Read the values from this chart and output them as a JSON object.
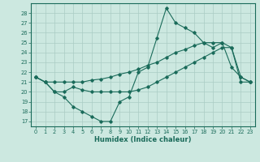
{
  "xlabel": "Humidex (Indice chaleur)",
  "bg_color": "#cce8e0",
  "grid_color": "#aaccC4",
  "line_color": "#1a6b5a",
  "xlim": [
    -0.5,
    23.5
  ],
  "ylim": [
    16.5,
    29.0
  ],
  "yticks": [
    17,
    18,
    19,
    20,
    21,
    22,
    23,
    24,
    25,
    26,
    27,
    28
  ],
  "xticks": [
    0,
    1,
    2,
    3,
    4,
    5,
    6,
    7,
    8,
    9,
    10,
    11,
    12,
    13,
    14,
    15,
    16,
    17,
    18,
    19,
    20,
    21,
    22,
    23
  ],
  "line1_x": [
    0,
    1,
    2,
    3,
    4,
    5,
    6,
    7,
    8,
    9,
    10,
    11,
    12,
    13,
    14,
    15,
    16,
    17,
    18,
    19,
    20,
    21,
    22,
    23
  ],
  "line1_y": [
    21.5,
    21.0,
    20.0,
    19.5,
    18.5,
    18.0,
    17.5,
    17.0,
    17.0,
    19.0,
    19.5,
    22.0,
    22.5,
    25.5,
    28.5,
    27.0,
    26.5,
    26.0,
    25.0,
    24.5,
    25.0,
    22.5,
    21.5,
    21.0
  ],
  "line2_x": [
    0,
    1,
    2,
    3,
    4,
    5,
    6,
    7,
    8,
    9,
    10,
    11,
    12,
    13,
    14,
    15,
    16,
    17,
    18,
    19,
    20,
    21,
    22,
    23
  ],
  "line2_y": [
    21.5,
    21.0,
    21.0,
    21.0,
    21.0,
    21.0,
    21.2,
    21.3,
    21.5,
    21.8,
    22.0,
    22.3,
    22.7,
    23.0,
    23.5,
    24.0,
    24.3,
    24.7,
    25.0,
    25.0,
    25.0,
    24.5,
    21.5,
    21.0
  ],
  "line3_x": [
    0,
    1,
    2,
    3,
    4,
    5,
    6,
    7,
    8,
    9,
    10,
    11,
    12,
    13,
    14,
    15,
    16,
    17,
    18,
    19,
    20,
    21,
    22,
    23
  ],
  "line3_y": [
    21.5,
    21.0,
    20.0,
    20.0,
    20.5,
    20.2,
    20.0,
    20.0,
    20.0,
    20.0,
    20.0,
    20.2,
    20.5,
    21.0,
    21.5,
    22.0,
    22.5,
    23.0,
    23.5,
    24.0,
    24.5,
    24.5,
    21.0,
    21.0
  ]
}
